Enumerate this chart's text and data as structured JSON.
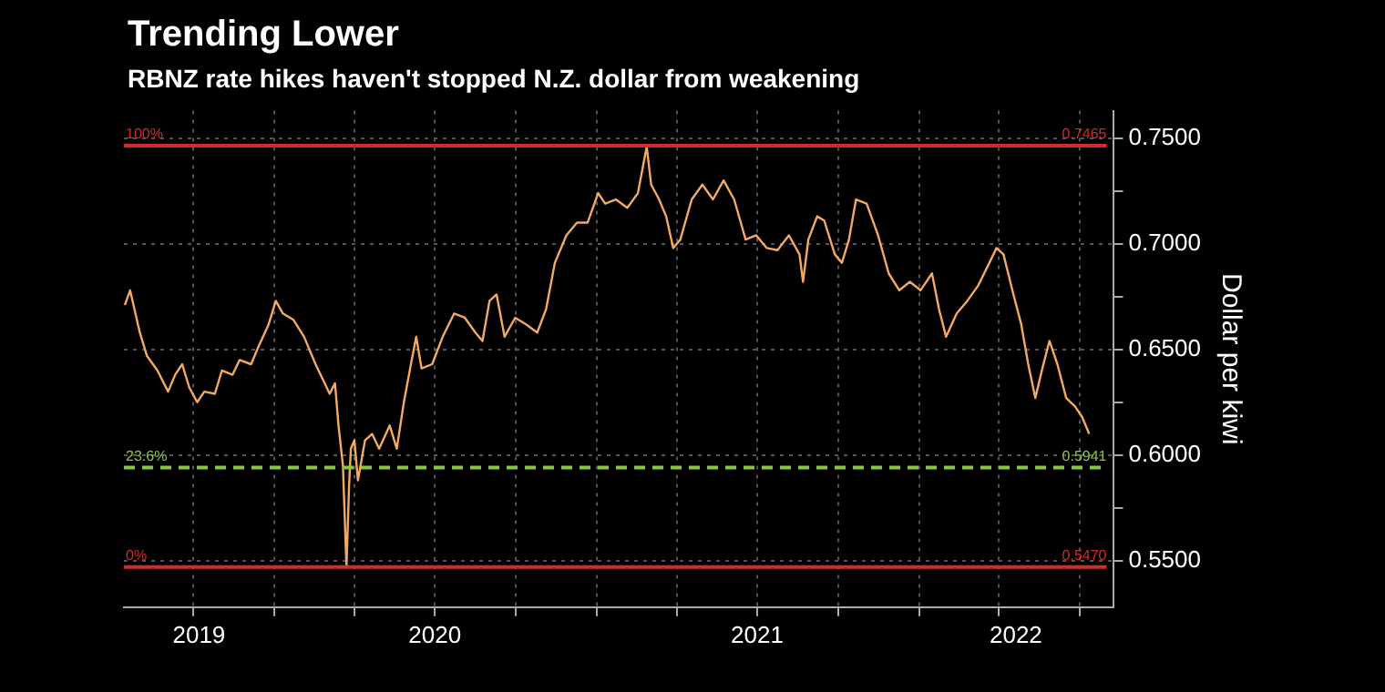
{
  "chart_data": {
    "type": "line",
    "title": "Trending Lower",
    "subtitle": "RBNZ rate hikes haven't stopped N.Z. dollar from weakening",
    "ylabel": "Dollar per kiwi",
    "x": [
      "2019-07-16",
      "2019-07-22",
      "2019-08-02",
      "2019-08-10",
      "2019-08-22",
      "2019-09-03",
      "2019-09-11",
      "2019-09-19",
      "2019-09-27",
      "2019-10-06",
      "2019-10-14",
      "2019-10-26",
      "2019-11-03",
      "2019-11-15",
      "2019-11-23",
      "2019-12-06",
      "2019-12-14",
      "2019-12-26",
      "2020-01-03",
      "2020-01-11",
      "2020-01-23",
      "2020-02-04",
      "2020-02-17",
      "2020-02-25",
      "2020-03-04",
      "2020-03-10",
      "2020-03-14",
      "2020-03-19",
      "2020-03-23",
      "2020-03-26",
      "2020-03-28",
      "2020-04-01",
      "2020-04-05",
      "2020-04-13",
      "2020-04-21",
      "2020-04-29",
      "2020-05-11",
      "2020-05-19",
      "2020-05-27",
      "2020-06-04",
      "2020-06-10",
      "2020-06-16",
      "2020-06-28",
      "2020-07-10",
      "2020-07-23",
      "2020-08-04",
      "2020-08-16",
      "2020-08-24",
      "2020-09-01",
      "2020-09-09",
      "2020-09-18",
      "2020-09-30",
      "2020-10-12",
      "2020-10-25",
      "2020-11-04",
      "2020-11-14",
      "2020-11-27",
      "2020-12-09",
      "2020-12-21",
      "2021-01-02",
      "2021-01-10",
      "2021-01-22",
      "2021-02-04",
      "2021-02-16",
      "2021-02-26",
      "2021-03-03",
      "2021-03-12",
      "2021-03-20",
      "2021-03-28",
      "2021-04-05",
      "2021-04-18",
      "2021-04-30",
      "2021-05-12",
      "2021-05-24",
      "2021-06-05",
      "2021-06-18",
      "2021-06-30",
      "2021-07-12",
      "2021-07-24",
      "2021-08-06",
      "2021-08-18",
      "2021-08-22",
      "2021-08-28",
      "2021-09-07",
      "2021-09-15",
      "2021-09-27",
      "2021-10-05",
      "2021-10-13",
      "2021-10-21",
      "2021-11-02",
      "2021-11-15",
      "2021-11-27",
      "2021-12-09",
      "2021-12-21",
      "2022-01-02",
      "2022-01-15",
      "2022-01-23",
      "2022-01-31",
      "2022-02-12",
      "2022-02-24",
      "2022-03-08",
      "2022-03-21",
      "2022-03-29",
      "2022-04-06",
      "2022-04-16",
      "2022-04-26",
      "2022-05-04",
      "2022-05-12",
      "2022-05-20",
      "2022-05-28",
      "2022-06-06",
      "2022-06-16",
      "2022-06-26",
      "2022-07-04",
      "2022-07-12"
    ],
    "series": [
      {
        "color": "#f2aa62",
        "values": [
          0.671,
          0.678,
          0.658,
          0.647,
          0.64,
          0.63,
          0.638,
          0.643,
          0.632,
          0.625,
          0.63,
          0.629,
          0.64,
          0.638,
          0.645,
          0.643,
          0.651,
          0.662,
          0.673,
          0.667,
          0.664,
          0.656,
          0.643,
          0.636,
          0.629,
          0.634,
          0.614,
          0.595,
          0.547,
          0.586,
          0.603,
          0.607,
          0.588,
          0.607,
          0.61,
          0.603,
          0.614,
          0.603,
          0.625,
          0.643,
          0.656,
          0.641,
          0.643,
          0.656,
          0.667,
          0.665,
          0.658,
          0.654,
          0.673,
          0.676,
          0.656,
          0.665,
          0.662,
          0.658,
          0.669,
          0.691,
          0.704,
          0.71,
          0.71,
          0.724,
          0.719,
          0.721,
          0.717,
          0.724,
          0.746,
          0.728,
          0.721,
          0.713,
          0.698,
          0.702,
          0.721,
          0.728,
          0.721,
          0.73,
          0.721,
          0.702,
          0.704,
          0.698,
          0.697,
          0.704,
          0.695,
          0.682,
          0.702,
          0.713,
          0.711,
          0.695,
          0.691,
          0.702,
          0.721,
          0.719,
          0.704,
          0.686,
          0.678,
          0.682,
          0.678,
          0.686,
          0.669,
          0.656,
          0.667,
          0.673,
          0.68,
          0.691,
          0.698,
          0.695,
          0.678,
          0.662,
          0.643,
          0.627,
          0.641,
          0.654,
          0.643,
          0.627,
          0.623,
          0.618,
          0.61
        ]
      }
    ],
    "xlim": [
      "2019-07-15",
      "2022-08-09"
    ],
    "xticks": [
      {
        "value": "2019-10-01",
        "label": null
      },
      {
        "value": "2020-01-01",
        "label": null
      },
      {
        "value": "2020-04-01",
        "label": null
      },
      {
        "value": "2020-07-01",
        "label": null
      },
      {
        "value": "2020-10-01",
        "label": null
      },
      {
        "value": "2021-01-01",
        "label": null
      },
      {
        "value": "2021-04-01",
        "label": null
      },
      {
        "value": "2021-07-01",
        "label": null
      },
      {
        "value": "2021-10-01",
        "label": null
      },
      {
        "value": "2022-01-01",
        "label": null
      },
      {
        "value": "2022-04-01",
        "label": null
      },
      {
        "value": "2022-07-01",
        "label": null
      },
      {
        "value": "2019-10-08",
        "label": "2019"
      },
      {
        "value": "2020-07-01",
        "label": "2020"
      },
      {
        "value": "2021-07-01",
        "label": "2021"
      },
      {
        "value": "2022-04-20",
        "label": "2022"
      }
    ],
    "ylim": [
      0.528,
      0.763
    ],
    "yticks": [
      {
        "value": 0.55,
        "label": "0.5500"
      },
      {
        "value": 0.575,
        "label": null
      },
      {
        "value": 0.6,
        "label": "0.6000"
      },
      {
        "value": 0.625,
        "label": null
      },
      {
        "value": 0.65,
        "label": "0.6500"
      },
      {
        "value": 0.675,
        "label": null
      },
      {
        "value": 0.7,
        "label": "0.7000"
      },
      {
        "value": 0.725,
        "label": null
      },
      {
        "value": 0.75,
        "label": "0.7500"
      }
    ],
    "ref_lines": [
      {
        "axis": "y",
        "value": 0.7465,
        "label": "0.7465",
        "color": "#d42a2a",
        "line_style": "solid"
      },
      {
        "axis": "y",
        "value": 0.5941,
        "label": "0.5941",
        "color": "#8cc63f",
        "line_style": "dashed"
      },
      {
        "axis": "y",
        "value": 0.547,
        "label": "0.5470",
        "color": "#d42a2a",
        "line_style": "solid"
      }
    ],
    "annotations": [
      {
        "text": "100%",
        "x": "2019-07-15",
        "y": 0.7465
      },
      {
        "text": "23.6%",
        "x": "2019-07-15",
        "y": 0.5941
      },
      {
        "text": "0%",
        "x": "2019-07-15",
        "y": 0.547
      }
    ],
    "grid": true,
    "legend": false,
    "marker": "none",
    "line_style": "solid"
  }
}
